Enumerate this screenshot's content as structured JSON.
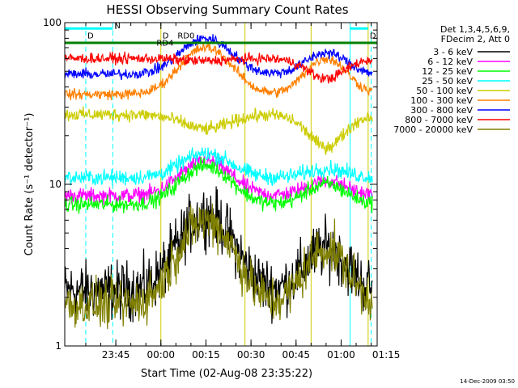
{
  "chart_data": {
    "type": "line",
    "title": "HESSI Observing Summary Count Rates",
    "xlabel": "Start Time (02-Aug-08 23:35:22)",
    "ylabel": "Count Rate (s⁻¹ detector⁻¹)",
    "yscale": "log",
    "ylim": [
      1,
      100
    ],
    "xlim_minutes": [
      -7,
      97
    ],
    "x_ticks": [
      {
        "label": "23:45",
        "t": 10
      },
      {
        "label": "00:00",
        "t": 25
      },
      {
        "label": "00:15",
        "t": 40
      },
      {
        "label": "00:30",
        "t": 55
      },
      {
        "label": "00:45",
        "t": 70
      },
      {
        "label": "01:00",
        "t": 85
      },
      {
        "label": "01:15",
        "t": 100
      }
    ],
    "y_ticks": [
      {
        "label": "1",
        "v": 1
      },
      {
        "label": "10",
        "v": 10
      },
      {
        "label": "100",
        "v": 100
      }
    ],
    "legend_header": [
      "Det 1,3,4,5,6,9,",
      "FDecim 2, Att 0"
    ],
    "legend_position": "right",
    "annotations": [
      {
        "text": "N",
        "t": 9,
        "v": 92,
        "color": "#00ffff"
      },
      {
        "text": "RD0",
        "t": 30,
        "v": 80,
        "color": "#008000"
      },
      {
        "text": "RD4",
        "t": 23,
        "v": 72,
        "color": "#008000"
      },
      {
        "text": "D",
        "t": 0,
        "v": 80,
        "color": "#008000"
      },
      {
        "text": "D",
        "t": 25,
        "v": 80,
        "color": "#008000"
      },
      {
        "text": "D",
        "t": 94,
        "v": 80,
        "color": "#008000"
      }
    ],
    "series": [
      {
        "name": "3 - 6 keV",
        "color": "#000000",
        "base": 2.2,
        "peaks": [
          6.5,
          4.0
        ],
        "noise": 0.22
      },
      {
        "name": "6 - 12 keV",
        "color": "#ff00ff",
        "base": 8.5,
        "peaks": [
          14.0,
          10.5
        ],
        "noise": 0.06
      },
      {
        "name": "12 - 25 keV",
        "color": "#00ff00",
        "base": 7.5,
        "peaks": [
          13.0,
          10.0
        ],
        "noise": 0.06
      },
      {
        "name": "25 - 50 keV",
        "color": "#00ffff",
        "base": 11.0,
        "peaks": [
          15.5,
          12.5
        ],
        "noise": 0.06
      },
      {
        "name": "50 - 100 keV",
        "color": "#cccc00",
        "base": 27.0,
        "peaks": [
          22.0,
          17.0
        ],
        "noise": 0.05
      },
      {
        "name": "100 - 300 keV",
        "color": "#ff8000",
        "base": 36.0,
        "peaks": [
          70.0,
          60.0
        ],
        "noise": 0.04
      },
      {
        "name": "300 - 800 keV",
        "color": "#0000ff",
        "base": 48.0,
        "peaks": [
          80.0,
          65.0
        ],
        "noise": 0.04
      },
      {
        "name": "800 - 7000 keV",
        "color": "#ff0000",
        "base": 60.0,
        "peaks": [
          58.0,
          45.0
        ],
        "noise": 0.04
      },
      {
        "name": "7000 - 20000 keV",
        "color": "#808000",
        "base": 1.8,
        "peaks": [
          6.0,
          4.0
        ],
        "noise": 0.18
      }
    ],
    "vertical_markers": [
      {
        "t": 0,
        "color": "#00ffff",
        "dashed": true
      },
      {
        "t": 9,
        "color": "#00ffff",
        "dashed": true
      },
      {
        "t": 88,
        "color": "#00ffff",
        "dashed": false
      },
      {
        "t": 95,
        "color": "#00ffff",
        "dashed": true
      },
      {
        "t": 25,
        "color": "#cccc00",
        "dashed": false
      },
      {
        "t": 53,
        "color": "#cccc00",
        "dashed": false
      },
      {
        "t": 75,
        "color": "#cccc00",
        "dashed": false
      },
      {
        "t": 94,
        "color": "#cccc00",
        "dashed": false
      }
    ]
  },
  "footer": {
    "timestamp": "14-Dec-2009 03:50"
  }
}
